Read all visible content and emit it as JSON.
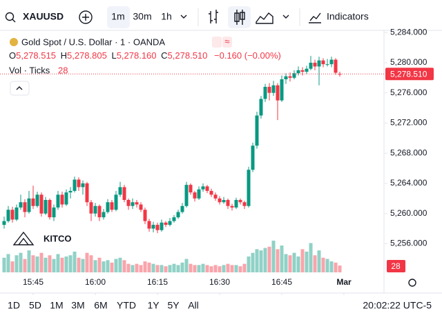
{
  "toolbar": {
    "symbol": "XAUUSD",
    "intervals": [
      "1m",
      "30m",
      "1h"
    ],
    "indicators": "Indicators"
  },
  "header": {
    "title": "Gold Spot / U.S. Dollar · 1 · OANDA",
    "o": "O",
    "o_value": "5,278.515",
    "h": "H",
    "h_value": "5,278.805",
    "l": "L",
    "l_value": "5,278.160",
    "c": "C",
    "c_value": "5,278.510",
    "change": "−0.160 (−0.00%)",
    "volume_title": "Vol · Ticks"
  },
  "watermark": "KITCO",
  "footer": {
    "ranges": [
      "1D",
      "5D",
      "1M",
      "3M",
      "6M",
      "YTD",
      "1Y",
      "5Y",
      "All"
    ],
    "time": "20:02:22 UTC-5"
  },
  "chart_data": {
    "type": "candlestick",
    "up_color": "#089981",
    "down_color": "#f23645",
    "grid": false,
    "ylim": [
      5252.2,
      5284.2
    ],
    "yticks": [
      {
        "value": 5256,
        "label": "5,256.000"
      },
      {
        "value": 5260,
        "label": "5,260.000"
      },
      {
        "value": 5264,
        "label": "5,264.000"
      },
      {
        "value": 5268,
        "label": "5,268.000"
      },
      {
        "value": 5272,
        "label": "5,272.000"
      },
      {
        "value": 5276,
        "label": "5,276.000"
      },
      {
        "value": 5280,
        "label": "5,280.000"
      },
      {
        "value": 5284,
        "label": "5,284.000"
      }
    ],
    "xticks": [
      {
        "value": 7,
        "label": "15:45"
      },
      {
        "value": 22,
        "label": "16:00"
      },
      {
        "value": 37,
        "label": "16:15"
      },
      {
        "value": 52,
        "label": "16:30"
      },
      {
        "value": 67,
        "label": "16:45"
      },
      {
        "value": 82,
        "label": "Mar"
      }
    ],
    "last_price": {
      "value": 5278.51,
      "label": "5,278.510"
    },
    "ohlc": [
      [
        5258.5,
        5259.6,
        5258.0,
        5259.0
      ],
      [
        5259.0,
        5261.0,
        5258.8,
        5260.5
      ],
      [
        5260.5,
        5260.9,
        5258.8,
        5259.2
      ],
      [
        5259.2,
        5261.2,
        5259.0,
        5260.8
      ],
      [
        5260.8,
        5262.5,
        5260.5,
        5261.5
      ],
      [
        5261.5,
        5261.9,
        5259.5,
        5260.2
      ],
      [
        5260.2,
        5263.0,
        5260.0,
        5262.0
      ],
      [
        5262.0,
        5263.7,
        5260.6,
        5261.0
      ],
      [
        5261.0,
        5262.9,
        5260.8,
        5262.5
      ],
      [
        5262.5,
        5262.8,
        5259.6,
        5260.0
      ],
      [
        5260.0,
        5262.2,
        5259.8,
        5261.8
      ],
      [
        5261.8,
        5262.0,
        5259.2,
        5259.5
      ],
      [
        5259.5,
        5261.2,
        5259.0,
        5260.8
      ],
      [
        5260.8,
        5263.0,
        5260.5,
        5262.5
      ],
      [
        5262.5,
        5262.9,
        5260.8,
        5261.2
      ],
      [
        5261.2,
        5263.2,
        5261.0,
        5262.8
      ],
      [
        5262.8,
        5263.5,
        5262.0,
        5263.0
      ],
      [
        5263.0,
        5264.9,
        5262.8,
        5264.5
      ],
      [
        5264.5,
        5264.8,
        5263.0,
        5263.5
      ],
      [
        5263.5,
        5264.4,
        5262.5,
        5264.0
      ],
      [
        5264.0,
        5264.2,
        5261.0,
        5261.5
      ],
      [
        5261.5,
        5261.8,
        5259.0,
        5260.0
      ],
      [
        5260.0,
        5261.4,
        5259.6,
        5261.0
      ],
      [
        5261.0,
        5261.2,
        5259.0,
        5259.5
      ],
      [
        5259.5,
        5260.6,
        5259.2,
        5260.2
      ],
      [
        5260.2,
        5261.9,
        5260.0,
        5261.5
      ],
      [
        5261.5,
        5261.8,
        5260.2,
        5260.5
      ],
      [
        5260.5,
        5263.0,
        5260.3,
        5262.5
      ],
      [
        5262.5,
        5264.2,
        5262.2,
        5263.5
      ],
      [
        5263.5,
        5263.8,
        5261.5,
        5261.8
      ],
      [
        5261.8,
        5262.0,
        5260.5,
        5261.0
      ],
      [
        5261.0,
        5262.0,
        5260.6,
        5261.5
      ],
      [
        5261.5,
        5261.8,
        5260.8,
        5261.2
      ],
      [
        5261.2,
        5261.5,
        5260.2,
        5260.5
      ],
      [
        5260.5,
        5260.8,
        5258.6,
        5259.0
      ],
      [
        5259.0,
        5259.3,
        5257.6,
        5258.0
      ],
      [
        5258.0,
        5258.9,
        5257.5,
        5258.5
      ],
      [
        5258.5,
        5258.8,
        5257.4,
        5257.8
      ],
      [
        5257.8,
        5259.2,
        5257.6,
        5258.8
      ],
      [
        5258.8,
        5259.0,
        5258.2,
        5258.5
      ],
      [
        5258.5,
        5259.4,
        5258.3,
        5259.0
      ],
      [
        5259.0,
        5259.8,
        5258.8,
        5259.5
      ],
      [
        5259.5,
        5260.5,
        5259.3,
        5260.2
      ],
      [
        5260.2,
        5261.4,
        5260.0,
        5261.0
      ],
      [
        5261.0,
        5264.2,
        5260.8,
        5263.8
      ],
      [
        5263.8,
        5264.0,
        5262.5,
        5262.8
      ],
      [
        5262.8,
        5263.0,
        5261.6,
        5262.0
      ],
      [
        5262.0,
        5263.6,
        5261.8,
        5263.2
      ],
      [
        5263.2,
        5264.0,
        5262.9,
        5263.6
      ],
      [
        5263.6,
        5263.8,
        5262.7,
        5263.0
      ],
      [
        5263.0,
        5263.3,
        5262.2,
        5262.5
      ],
      [
        5262.5,
        5262.8,
        5261.7,
        5262.0
      ],
      [
        5262.0,
        5262.3,
        5261.2,
        5261.5
      ],
      [
        5261.5,
        5262.2,
        5261.3,
        5261.8
      ],
      [
        5261.8,
        5262.0,
        5260.6,
        5261.0
      ],
      [
        5261.0,
        5261.3,
        5260.4,
        5260.8
      ],
      [
        5260.8,
        5262.1,
        5260.6,
        5261.8
      ],
      [
        5261.8,
        5262.0,
        5261.2,
        5261.5
      ],
      [
        5261.5,
        5261.7,
        5260.6,
        5261.0
      ],
      [
        5261.0,
        5266.2,
        5260.8,
        5265.8
      ],
      [
        5265.8,
        5269.4,
        5265.5,
        5269.0
      ],
      [
        5269.0,
        5273.5,
        5268.6,
        5273.0
      ],
      [
        5273.0,
        5275.6,
        5272.6,
        5275.2
      ],
      [
        5275.2,
        5277.2,
        5274.8,
        5276.8
      ],
      [
        5276.8,
        5277.3,
        5275.0,
        5276.0
      ],
      [
        5276.0,
        5277.6,
        5275.6,
        5277.0
      ],
      [
        5277.0,
        5277.3,
        5272.4,
        5275.0
      ],
      [
        5275.0,
        5278.3,
        5274.8,
        5277.8
      ],
      [
        5277.8,
        5278.6,
        5277.2,
        5278.2
      ],
      [
        5278.2,
        5278.7,
        5277.5,
        5278.0
      ],
      [
        5278.0,
        5279.0,
        5277.8,
        5278.6
      ],
      [
        5278.6,
        5279.5,
        5278.3,
        5279.0
      ],
      [
        5279.0,
        5279.4,
        5278.3,
        5278.8
      ],
      [
        5278.8,
        5279.6,
        5278.5,
        5279.2
      ],
      [
        5279.2,
        5280.9,
        5279.0,
        5280.0
      ],
      [
        5280.0,
        5280.4,
        5279.0,
        5279.5
      ],
      [
        5279.5,
        5280.8,
        5277.0,
        5280.3
      ],
      [
        5280.3,
        5280.6,
        5279.4,
        5279.8
      ],
      [
        5279.8,
        5280.5,
        5279.5,
        5279.8
      ],
      [
        5279.8,
        5280.8,
        5279.4,
        5280.4
      ],
      [
        5280.4,
        5280.6,
        5278.4,
        5278.67
      ],
      [
        5278.515,
        5278.805,
        5278.16,
        5278.51
      ]
    ],
    "volumes": [
      60,
      75,
      45,
      70,
      80,
      55,
      90,
      70,
      65,
      80,
      60,
      70,
      55,
      75,
      60,
      65,
      70,
      85,
      60,
      55,
      80,
      70,
      50,
      60,
      45,
      50,
      40,
      55,
      60,
      50,
      35,
      30,
      35,
      30,
      45,
      40,
      35,
      30,
      30,
      25,
      30,
      35,
      30,
      40,
      55,
      35,
      30,
      30,
      35,
      30,
      25,
      30,
      25,
      30,
      35,
      30,
      30,
      25,
      35,
      65,
      80,
      95,
      90,
      100,
      105,
      130,
      95,
      110,
      75,
      70,
      80,
      65,
      95,
      85,
      120,
      70,
      90,
      60,
      55,
      45,
      40,
      28
    ]
  }
}
